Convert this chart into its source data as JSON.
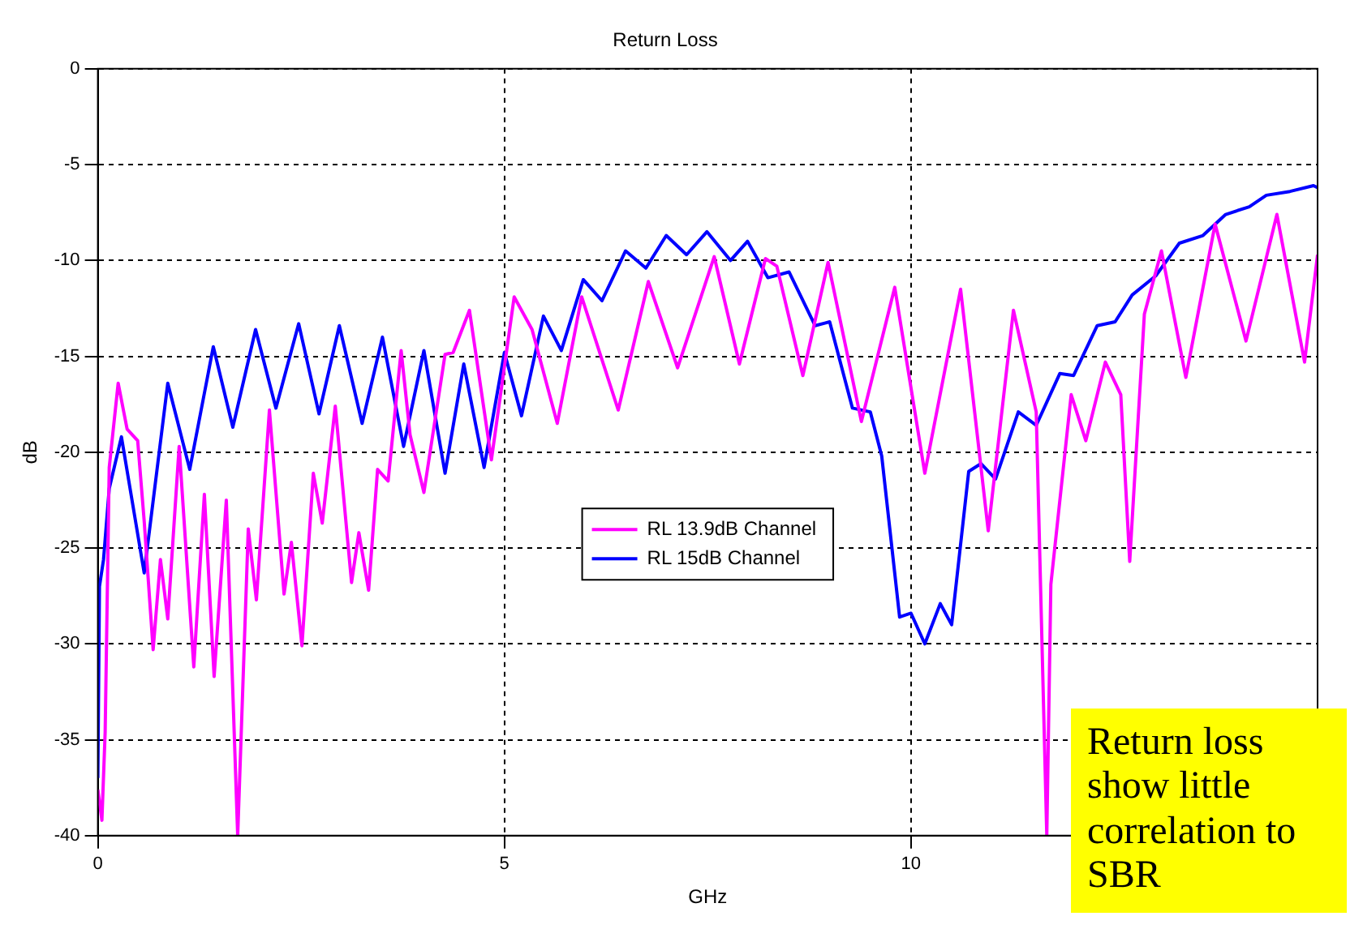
{
  "chart_data": {
    "type": "line",
    "title": "Return Loss",
    "xlabel": "GHz",
    "ylabel": "dB",
    "xlim": [
      0,
      15
    ],
    "xticks": [
      0,
      5,
      10
    ],
    "ylim": [
      -40,
      0
    ],
    "yticks": [
      -40,
      -35,
      -30,
      -25,
      -20,
      -15,
      -10,
      -5,
      0
    ],
    "grid": true,
    "legend": "center",
    "line_style": "solid",
    "annotations": [
      "Return loss show little correlation to SBR"
    ],
    "series": [
      {
        "name": "RL 13.9dB Channel",
        "color": "#ff00ff",
        "x": [
          0,
          0.05,
          0.09,
          0.14,
          0.25,
          0.36,
          0.49,
          0.57,
          0.68,
          0.77,
          0.86,
          1.0,
          1.18,
          1.31,
          1.43,
          1.58,
          1.72,
          1.85,
          1.95,
          2.11,
          2.29,
          2.38,
          2.51,
          2.65,
          2.76,
          2.92,
          3.12,
          3.21,
          3.33,
          3.44,
          3.57,
          3.73,
          3.84,
          4.01,
          4.27,
          4.37,
          4.57,
          4.84,
          5.12,
          5.34,
          5.65,
          5.95,
          6.4,
          6.77,
          7.13,
          7.58,
          7.89,
          8.21,
          8.35,
          8.67,
          8.98,
          9.39,
          9.8,
          10.17,
          10.61,
          10.95,
          11.26,
          11.54,
          11.67,
          11.72,
          11.97,
          12.15,
          12.39,
          12.58,
          12.69,
          12.87,
          13.08,
          13.38,
          13.74,
          14.12,
          14.5,
          14.84,
          15.0
        ],
        "values": [
          -37.6,
          -39.2,
          -34.6,
          -20.8,
          -16.4,
          -18.8,
          -19.4,
          -23.6,
          -30.3,
          -25.6,
          -28.7,
          -19.7,
          -31.2,
          -22.2,
          -31.7,
          -22.5,
          -40,
          -24.0,
          -27.7,
          -17.8,
          -27.4,
          -24.7,
          -30.1,
          -21.1,
          -23.7,
          -17.6,
          -26.8,
          -24.2,
          -27.2,
          -20.9,
          -21.5,
          -14.7,
          -19.1,
          -22.1,
          -14.9,
          -14.8,
          -12.6,
          -20.4,
          -11.9,
          -13.6,
          -18.5,
          -11.9,
          -17.8,
          -11.1,
          -15.6,
          -9.8,
          -15.4,
          -9.9,
          -10.3,
          -16.0,
          -10.1,
          -18.4,
          -11.4,
          -21.1,
          -11.5,
          -24.1,
          -12.6,
          -17.9,
          -40,
          -26.9,
          -17.0,
          -19.4,
          -15.3,
          -17.0,
          -25.7,
          -12.8,
          -9.5,
          -16.1,
          -8.1,
          -14.2,
          -7.6,
          -15.3,
          -9.7
        ]
      },
      {
        "name": "RL 15dB Channel",
        "color": "#0000ff",
        "x": [
          0,
          0.02,
          0.07,
          0.14,
          0.29,
          0.57,
          0.86,
          1.13,
          1.42,
          1.66,
          1.94,
          2.19,
          2.47,
          2.72,
          2.97,
          3.25,
          3.5,
          3.76,
          4.01,
          4.27,
          4.5,
          4.75,
          5.0,
          5.21,
          5.48,
          5.7,
          5.97,
          6.2,
          6.49,
          6.74,
          6.99,
          7.24,
          7.49,
          7.78,
          7.99,
          8.24,
          8.5,
          8.82,
          9.0,
          9.28,
          9.5,
          9.64,
          9.86,
          10.0,
          10.17,
          10.36,
          10.5,
          10.71,
          10.86,
          11.04,
          11.32,
          11.54,
          11.83,
          12.0,
          12.29,
          12.51,
          12.72,
          13.01,
          13.3,
          13.59,
          13.87,
          14.16,
          14.37,
          14.66,
          14.95,
          15.0
        ],
        "values": [
          -37,
          -27,
          -25.6,
          -21.9,
          -19.2,
          -26.3,
          -16.4,
          -20.9,
          -14.5,
          -18.7,
          -13.6,
          -17.7,
          -13.3,
          -18.0,
          -13.4,
          -18.5,
          -14.0,
          -19.7,
          -14.7,
          -21.1,
          -15.4,
          -20.8,
          -14.8,
          -18.1,
          -12.9,
          -14.7,
          -11.0,
          -12.1,
          -9.5,
          -10.4,
          -8.7,
          -9.7,
          -8.5,
          -10.0,
          -9.0,
          -10.9,
          -10.6,
          -13.4,
          -13.2,
          -17.7,
          -17.9,
          -20.2,
          -28.6,
          -28.4,
          -30.0,
          -27.9,
          -29.0,
          -21.0,
          -20.6,
          -21.4,
          -17.9,
          -18.6,
          -15.9,
          -16.0,
          -13.4,
          -13.2,
          -11.8,
          -10.8,
          -9.1,
          -8.7,
          -7.6,
          -7.2,
          -6.6,
          -6.4,
          -6.1,
          -6.2
        ]
      }
    ]
  }
}
